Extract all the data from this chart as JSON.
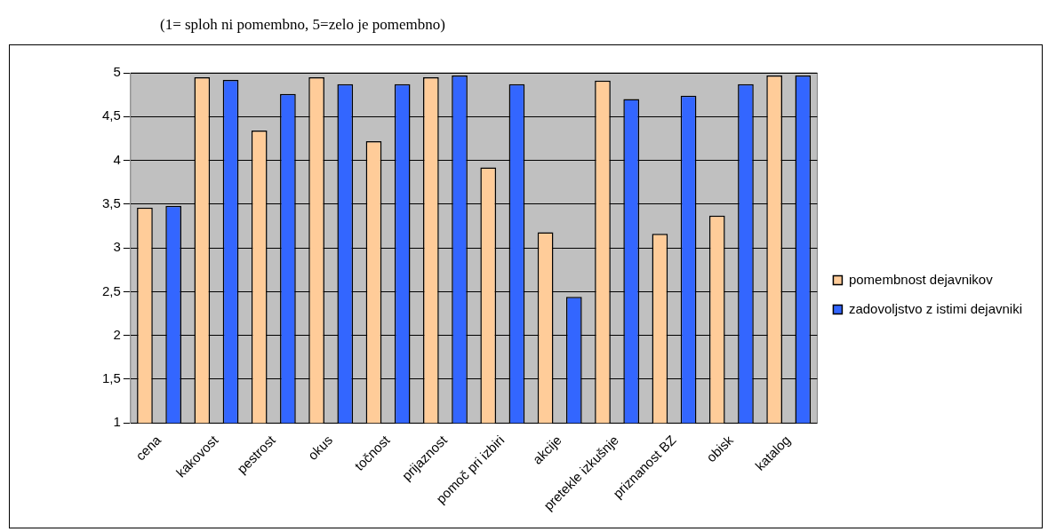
{
  "chart_data": {
    "type": "bar",
    "title": "(1= sploh ni pomembno, 5=zelo je pomembno)",
    "categories": [
      "cena",
      "kakovost",
      "pestrost",
      "okus",
      "točnost",
      "prijaznost",
      "pomoč pri izbiri",
      "akcije",
      "pretekle izkušnje",
      "priznanost BZ",
      "obisk",
      "katalog"
    ],
    "series": [
      {
        "name": "pomembnost dejavnikov",
        "color": "#ffcc99",
        "values": [
          3.46,
          4.95,
          4.34,
          4.95,
          4.22,
          4.95,
          3.92,
          3.18,
          4.91,
          3.16,
          3.37,
          4.97
        ]
      },
      {
        "name": "zadovoljstvo z istimi dejavniki",
        "color": "#3366ff",
        "values": [
          3.48,
          4.92,
          4.76,
          4.87,
          4.87,
          4.97,
          4.87,
          2.44,
          4.7,
          4.74,
          4.87,
          4.97
        ]
      }
    ],
    "ylim": [
      1,
      5
    ],
    "yticks": [
      1,
      {
        "value": 1.5,
        "label": "1,5"
      },
      2,
      {
        "value": 2.5,
        "label": "2,5"
      },
      3,
      {
        "value": 3.5,
        "label": "3,5"
      },
      4,
      {
        "value": 4.5,
        "label": "4,5"
      },
      5
    ],
    "grid": "y",
    "legend": "right"
  }
}
